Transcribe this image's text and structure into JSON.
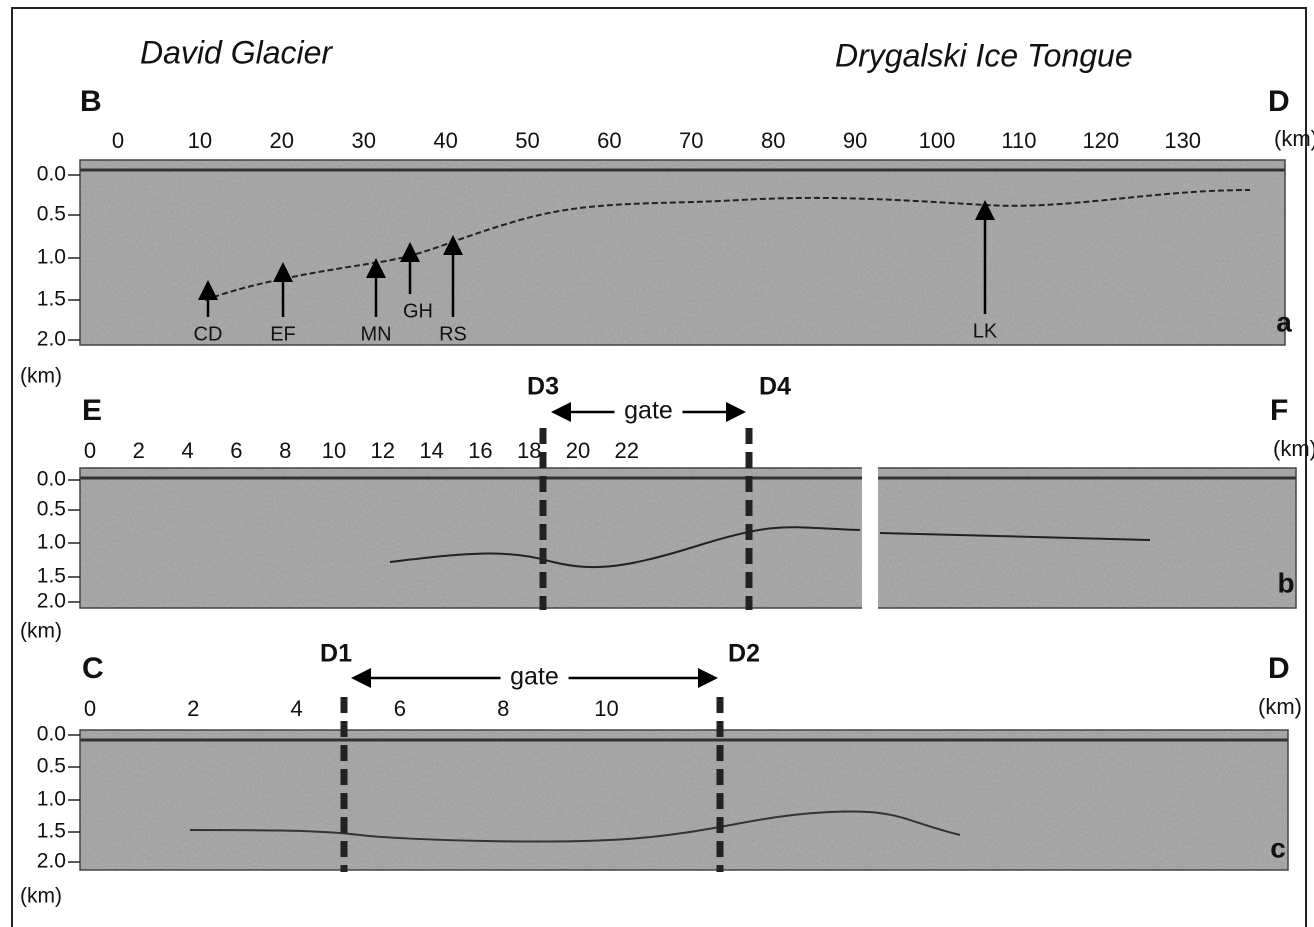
{
  "header": {
    "left_title": "David Glacier",
    "right_title": "Drygalski Ice Tongue"
  },
  "panels": [
    {
      "label": "a",
      "start": "B",
      "end": "D",
      "x_unit": "(km)",
      "y_unit": "(km)",
      "x_ticks": [
        "0",
        "10",
        "20",
        "30",
        "40",
        "50",
        "60",
        "70",
        "80",
        "90",
        "100",
        "110",
        "120",
        "130"
      ],
      "y_ticks": [
        "0.0",
        "0.5",
        "1.0",
        "1.5",
        "2.0"
      ],
      "annotations": [
        "CD",
        "EF",
        "MN",
        "GH",
        "RS",
        "LK"
      ]
    },
    {
      "label": "b",
      "start": "E",
      "end": "F",
      "x_unit": "(km)",
      "y_unit": "(km)",
      "x_ticks": [
        "0",
        "2",
        "4",
        "6",
        "8",
        "10",
        "12",
        "14",
        "16",
        "18",
        "20",
        "22"
      ],
      "y_ticks": [
        "0.0",
        "0.5",
        "1.0",
        "1.5",
        "2.0"
      ],
      "markers": [
        "D3",
        "D4"
      ],
      "gate": "gate"
    },
    {
      "label": "c",
      "start": "C",
      "end": "D",
      "x_unit": "(km)",
      "y_unit": "(km)",
      "x_ticks": [
        "0",
        "2",
        "4",
        "6",
        "8",
        "10"
      ],
      "y_ticks": [
        "0.0",
        "0.5",
        "1.0",
        "1.5",
        "2.0"
      ],
      "markers": [
        "D1",
        "D2"
      ],
      "gate": "gate"
    }
  ]
}
